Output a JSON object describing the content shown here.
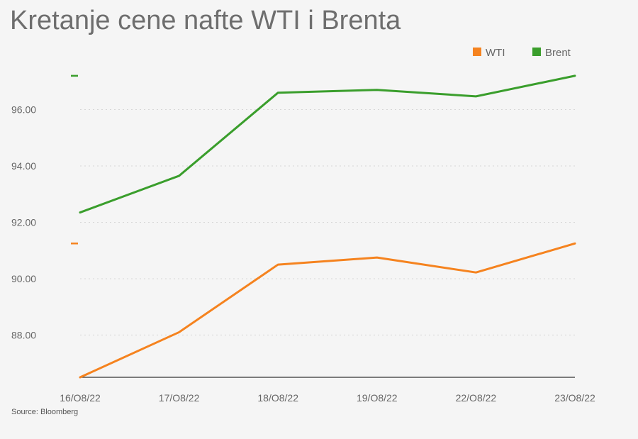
{
  "chart_data": {
    "type": "line",
    "title": "Kretanje cene nafte WTI i Brenta",
    "source": "Source: Bloomberg",
    "categories": [
      "16/O8/22",
      "17/O8/22",
      "18/O8/22",
      "19/O8/22",
      "22/O8/22",
      "23/O8/22"
    ],
    "series": [
      {
        "name": "WTI",
        "color": "#f5831f",
        "values": [
          86.5,
          88.1,
          90.5,
          90.75,
          90.22,
          91.25
        ]
      },
      {
        "name": "Brent",
        "color": "#3a9e2c",
        "values": [
          92.35,
          93.65,
          96.6,
          96.7,
          96.47,
          97.2
        ]
      }
    ],
    "yticks": [
      "88.00",
      "90.00",
      "92.00",
      "94.00",
      "96.00"
    ],
    "ytick_values": [
      88,
      90,
      92,
      94,
      96
    ],
    "ylim": [
      86.5,
      97.7
    ],
    "grid": true,
    "legend": "top-right",
    "xlabel": "",
    "ylabel": ""
  }
}
